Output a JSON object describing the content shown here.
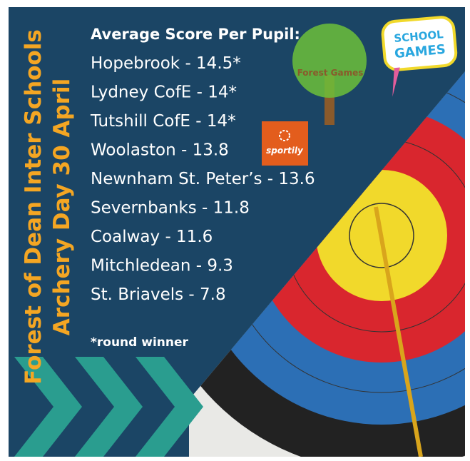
{
  "side_title": [
    "Forest of Dean Inter Schools",
    "Archery Day 30 April"
  ],
  "heading": "Average Score Per Pupil:",
  "results": [
    "Hopebrook - 14.5*",
    "Lydney CofE - 14*",
    "Tutshill CofE - 14*",
    "Woolaston - 13.8",
    "Newnham St. Peter’s - 13.6",
    "Severnbanks - 11.8",
    "Coalway - 11.6",
    "Mitchledean - 9.3",
    "St. Briavels - 7.8"
  ],
  "footnote": "*round winner",
  "logos": {
    "forest_games": "Forest Games",
    "sportily": "sportily",
    "school_games": [
      "SCHOOL",
      "GAMES"
    ]
  }
}
